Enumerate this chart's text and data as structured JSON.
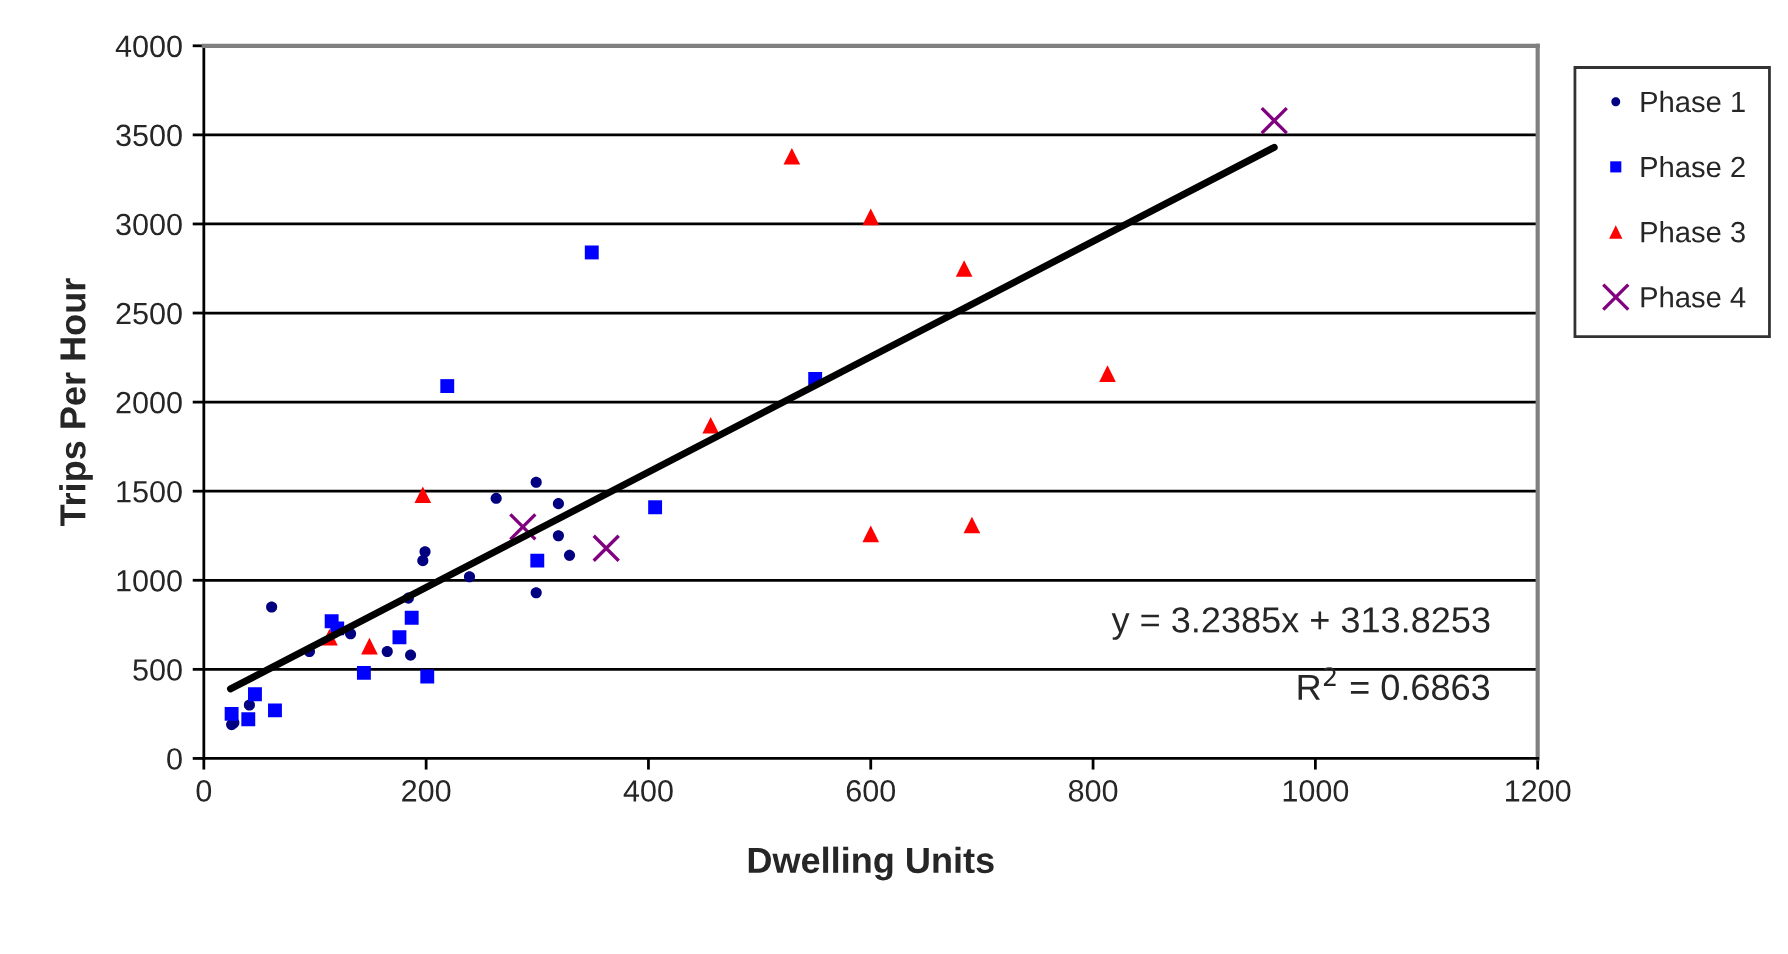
{
  "chart_data": {
    "type": "scatter",
    "xlabel": "Dwelling Units",
    "ylabel": "Trips Per Hour",
    "xlim": [
      0,
      1200
    ],
    "xticks": [
      0,
      200,
      400,
      600,
      800,
      1000,
      1200
    ],
    "ylim": [
      0,
      4000
    ],
    "yticks": [
      0,
      500,
      1000,
      1500,
      2000,
      2500,
      3000,
      3500,
      4000
    ],
    "grid": "y",
    "legend": "top right",
    "series": [
      {
        "name": "Phase 1",
        "color": "#000080",
        "marker": "circle",
        "x": [
          25,
          27,
          41,
          61,
          95,
          132,
          165,
          186,
          184,
          197,
          199,
          239,
          263,
          299,
          319,
          319,
          329,
          299
        ],
        "values": [
          190,
          200,
          300,
          850,
          600,
          700,
          600,
          580,
          900,
          1110,
          1160,
          1020,
          1460,
          1550,
          1430,
          1250,
          1140,
          930
        ]
      },
      {
        "name": "Phase 2",
        "color": "#0000ff",
        "marker": "square",
        "x": [
          25,
          40,
          46,
          64,
          115,
          120,
          144,
          176,
          187,
          201,
          300,
          406,
          219,
          349,
          550
        ],
        "values": [
          250,
          220,
          360,
          270,
          770,
          730,
          480,
          680,
          790,
          460,
          1110,
          1410,
          2090,
          2840,
          2130
        ]
      },
      {
        "name": "Phase 3",
        "color": "#ff0000",
        "marker": "triangle",
        "x": [
          113,
          149,
          197,
          456,
          529,
          600,
          684,
          813,
          600,
          691
        ],
        "values": [
          680,
          630,
          1480,
          1870,
          3380,
          3040,
          2750,
          2160,
          1260,
          1310
        ]
      },
      {
        "name": "Phase 4",
        "color": "#800080",
        "marker": "cross",
        "x": [
          287,
          362,
          963
        ],
        "values": [
          1300,
          1180,
          3580
        ]
      },
      {
        "type": "line",
        "color": "#000000",
        "marker": "none",
        "line_style": "solid",
        "x": [
          24,
          963
        ],
        "values": [
          390,
          3430
        ]
      }
    ],
    "annotations": [
      {
        "text": "y = 3.2385x + 313.8253"
      },
      {
        "text": "R$^{2}$ = 0.6863"
      }
    ]
  }
}
